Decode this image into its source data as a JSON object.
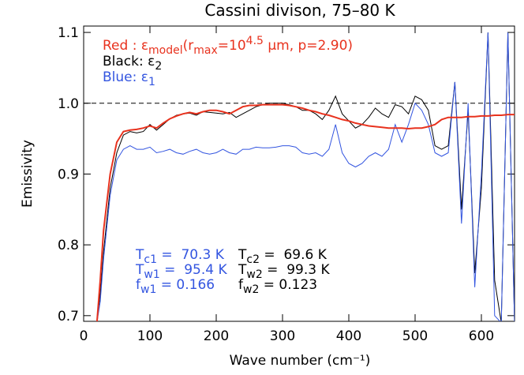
{
  "chart_data": {
    "type": "line",
    "title": "Cassini divison, 75–80 K",
    "x_label": "Wave number (cm⁻¹)",
    "y_label": "Emissivity",
    "xlim": [
      0,
      650
    ],
    "ylim": [
      0.692,
      1.109
    ],
    "xticks": [
      0,
      100,
      200,
      300,
      400,
      500,
      600
    ],
    "yticks": [
      0.7,
      0.8,
      0.9,
      {
        "value": 1,
        "label": "1.0"
      },
      1.1
    ],
    "reference_line": 1,
    "x": [
      20,
      25,
      30,
      40,
      50,
      60,
      70,
      80,
      90,
      100,
      110,
      120,
      130,
      140,
      150,
      160,
      170,
      180,
      190,
      200,
      210,
      220,
      230,
      240,
      250,
      260,
      270,
      280,
      290,
      300,
      310,
      320,
      330,
      340,
      350,
      360,
      370,
      380,
      390,
      400,
      410,
      420,
      430,
      440,
      450,
      460,
      470,
      480,
      490,
      500,
      510,
      520,
      530,
      540,
      550,
      560,
      570,
      580,
      590,
      600,
      610,
      620,
      630,
      640,
      650
    ],
    "series": [
      {
        "color": "#000000",
        "name_parts": [
          {
            "text": "Black: ε"
          },
          {
            "text": "2",
            "shift": "sub"
          }
        ],
        "values": [
          0.69,
          0.73,
          0.79,
          0.88,
          0.93,
          0.955,
          0.96,
          0.958,
          0.96,
          0.97,
          0.962,
          0.97,
          0.978,
          0.983,
          0.985,
          0.986,
          0.983,
          0.988,
          0.987,
          0.986,
          0.985,
          0.987,
          0.98,
          0.985,
          0.99,
          0.995,
          0.998,
          1.0,
          1.0,
          1.0,
          0.998,
          0.995,
          0.99,
          0.99,
          0.985,
          0.977,
          0.99,
          1.01,
          0.985,
          0.975,
          0.965,
          0.97,
          0.98,
          0.993,
          0.985,
          0.98,
          0.998,
          0.995,
          0.985,
          1.01,
          1.005,
          0.99,
          0.94,
          0.935,
          0.94,
          1.03,
          0.85,
          0.99,
          0.76,
          0.88,
          1.1,
          0.75,
          0.69,
          1.1,
          0.69
        ]
      },
      {
        "color": "#3355e0",
        "name_parts": [
          {
            "text": "Blue: ε"
          },
          {
            "text": "1",
            "shift": "sub"
          }
        ],
        "values": [
          0.69,
          0.72,
          0.78,
          0.87,
          0.92,
          0.935,
          0.94,
          0.935,
          0.935,
          0.938,
          0.93,
          0.932,
          0.935,
          0.93,
          0.928,
          0.932,
          0.935,
          0.93,
          0.928,
          0.93,
          0.935,
          0.93,
          0.928,
          0.935,
          0.935,
          0.938,
          0.937,
          0.937,
          0.938,
          0.94,
          0.94,
          0.938,
          0.93,
          0.928,
          0.93,
          0.925,
          0.935,
          0.97,
          0.93,
          0.915,
          0.91,
          0.915,
          0.925,
          0.93,
          0.925,
          0.935,
          0.97,
          0.945,
          0.97,
          1.0,
          0.99,
          0.97,
          0.93,
          0.925,
          0.93,
          1.03,
          0.83,
          1.0,
          0.74,
          0.9,
          1.1,
          0.7,
          0.69,
          1.1,
          0.69
        ]
      },
      {
        "color": "#e8321e",
        "width": 2,
        "name_parts": [
          {
            "text": "Red : ε"
          },
          {
            "text": "model",
            "shift": "sub"
          },
          {
            "text": "(r"
          },
          {
            "text": "max",
            "shift": "sub"
          },
          {
            "text": "=10"
          },
          {
            "text": "4.5",
            "shift": "sup"
          },
          {
            "text": " μm, p=2.90)"
          }
        ],
        "values": [
          0.69,
          0.75,
          0.82,
          0.9,
          0.945,
          0.96,
          0.962,
          0.963,
          0.965,
          0.968,
          0.965,
          0.972,
          0.978,
          0.982,
          0.985,
          0.987,
          0.985,
          0.988,
          0.99,
          0.99,
          0.988,
          0.985,
          0.99,
          0.995,
          0.997,
          0.997,
          0.998,
          0.998,
          0.998,
          0.998,
          0.997,
          0.995,
          0.993,
          0.99,
          0.988,
          0.985,
          0.983,
          0.98,
          0.977,
          0.975,
          0.972,
          0.97,
          0.968,
          0.967,
          0.966,
          0.965,
          0.965,
          0.965,
          0.964,
          0.965,
          0.965,
          0.967,
          0.97,
          0.977,
          0.98,
          0.98,
          0.98,
          0.981,
          0.981,
          0.982,
          0.982,
          0.983,
          0.983,
          0.984,
          0.984
        ]
      }
    ],
    "legend_order": [
      2,
      0,
      1
    ],
    "annotations": [
      {
        "color": "#3355e0",
        "parts": [
          {
            "text": "T"
          },
          {
            "text": "c1",
            "shift": "sub"
          },
          {
            "text": " =  70.3 K"
          }
        ]
      },
      {
        "color": "#000000",
        "parts": [
          {
            "text": "T"
          },
          {
            "text": "c2",
            "shift": "sub"
          },
          {
            "text": " =  69.6 K"
          }
        ]
      },
      {
        "color": "#3355e0",
        "parts": [
          {
            "text": "T"
          },
          {
            "text": "w1",
            "shift": "sub"
          },
          {
            "text": " =  95.4 K"
          }
        ]
      },
      {
        "color": "#000000",
        "parts": [
          {
            "text": "T"
          },
          {
            "text": "w2",
            "shift": "sub"
          },
          {
            "text": " =  99.3 K"
          }
        ]
      },
      {
        "color": "#3355e0",
        "parts": [
          {
            "text": "f"
          },
          {
            "text": "w1",
            "shift": "sub"
          },
          {
            "text": " = 0.166"
          }
        ]
      },
      {
        "color": "#000000",
        "parts": [
          {
            "text": "f"
          },
          {
            "text": "w2",
            "shift": "sub"
          },
          {
            "text": " = 0.123"
          }
        ]
      }
    ]
  }
}
